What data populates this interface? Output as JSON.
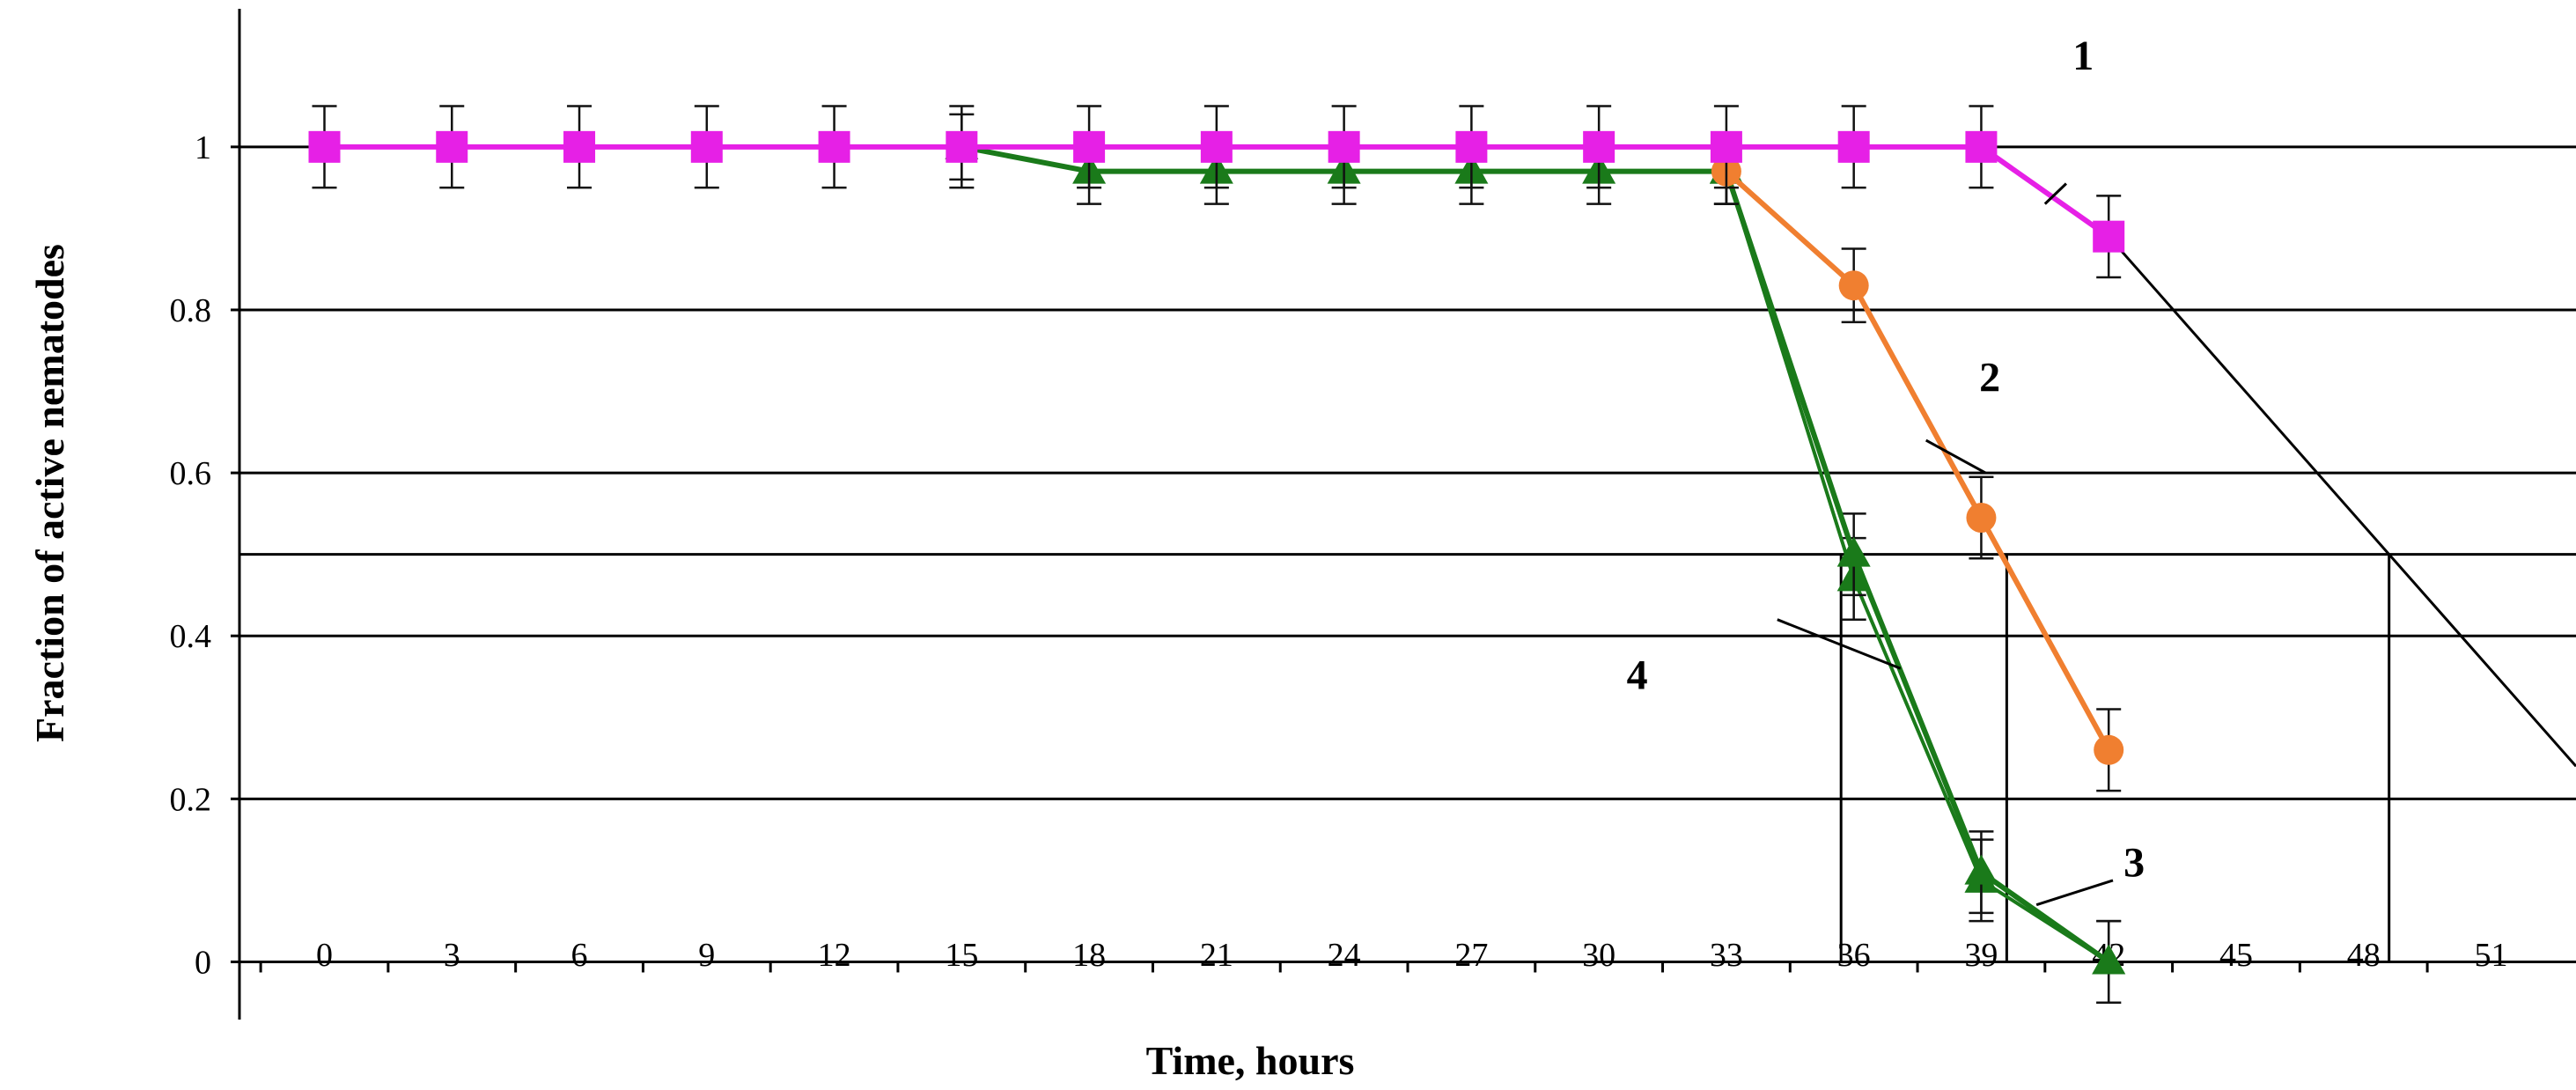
{
  "chart_data": {
    "type": "line",
    "title": "",
    "xlabel": "Time, hours",
    "ylabel": "Fraction of active nematodes",
    "x_ticks": [
      0,
      3,
      6,
      9,
      12,
      15,
      18,
      21,
      24,
      27,
      30,
      33,
      36,
      39,
      42,
      45,
      48,
      51
    ],
    "y_ticks": [
      0,
      0.2,
      0.4,
      0.6,
      0.8,
      1
    ],
    "xlim": [
      -2,
      53
    ],
    "ylim": [
      -0.06,
      1.15
    ],
    "grid": "horizontal",
    "half_activity_level": 0.5,
    "series": [
      {
        "name": "1",
        "color": "#e620e6",
        "marker": "square",
        "x": [
          0,
          3,
          6,
          9,
          12,
          15,
          18,
          21,
          24,
          27,
          30,
          33,
          36,
          39,
          42
        ],
        "y": [
          1,
          1,
          1,
          1,
          1,
          1,
          1,
          1,
          1,
          1,
          1,
          1,
          1,
          1,
          0.89
        ],
        "err": [
          0.05,
          0.05,
          0.05,
          0.05,
          0.05,
          0.05,
          0.05,
          0.05,
          0.05,
          0.05,
          0.05,
          0.05,
          0.05,
          0.05,
          0.05
        ]
      },
      {
        "name": "2",
        "color": "#f07f30",
        "marker": "circle",
        "x": [
          33,
          36,
          39,
          42
        ],
        "y": [
          0.97,
          0.83,
          0.545,
          0.26
        ],
        "err": [
          0.04,
          0.045,
          0.05,
          0.05
        ]
      },
      {
        "name": "3",
        "color": "#1a7a1a",
        "marker": "triangle",
        "x": [
          15,
          18,
          21,
          24,
          27,
          30,
          33,
          36,
          39,
          42
        ],
        "y": [
          1,
          0.97,
          0.97,
          0.97,
          0.97,
          0.97,
          0.97,
          0.5,
          0.11,
          0
        ],
        "err": [
          0.04,
          0.04,
          0.04,
          0.04,
          0.04,
          0.04,
          0.04,
          0.05,
          0.05,
          0.05
        ]
      },
      {
        "name": "4",
        "color": "#1a7a1a",
        "marker": "triangle",
        "x": [
          33,
          36,
          39,
          42
        ],
        "y": [
          0.97,
          0.47,
          0.1,
          0
        ],
        "err": [
          0.04,
          0.05,
          0.05,
          0.05
        ]
      }
    ],
    "extrapolation": {
      "from": [
        42,
        0.89
      ],
      "to": [
        53,
        0.24
      ]
    },
    "half_time_markers": [
      35.7,
      39.6,
      48.6
    ],
    "annotations": [
      {
        "label": "1",
        "pointer_from": [
          41,
          0.955
        ],
        "pointer_to": [
          40.5,
          0.93
        ],
        "text_at": [
          41.4,
          1.095
        ]
      },
      {
        "label": "2",
        "pointer_from": [
          37.7,
          0.64
        ],
        "pointer_to": [
          39.1,
          0.6
        ],
        "text_at": [
          39.2,
          0.7
        ]
      },
      {
        "label": "3",
        "pointer_from": [
          40.3,
          0.07
        ],
        "pointer_to": [
          42.1,
          0.1
        ],
        "text_at": [
          42.6,
          0.105
        ]
      },
      {
        "label": "4",
        "pointer_from": [
          37.1,
          0.36
        ],
        "pointer_to": [
          34.2,
          0.42
        ],
        "text_at": [
          30.9,
          0.335
        ]
      }
    ]
  }
}
